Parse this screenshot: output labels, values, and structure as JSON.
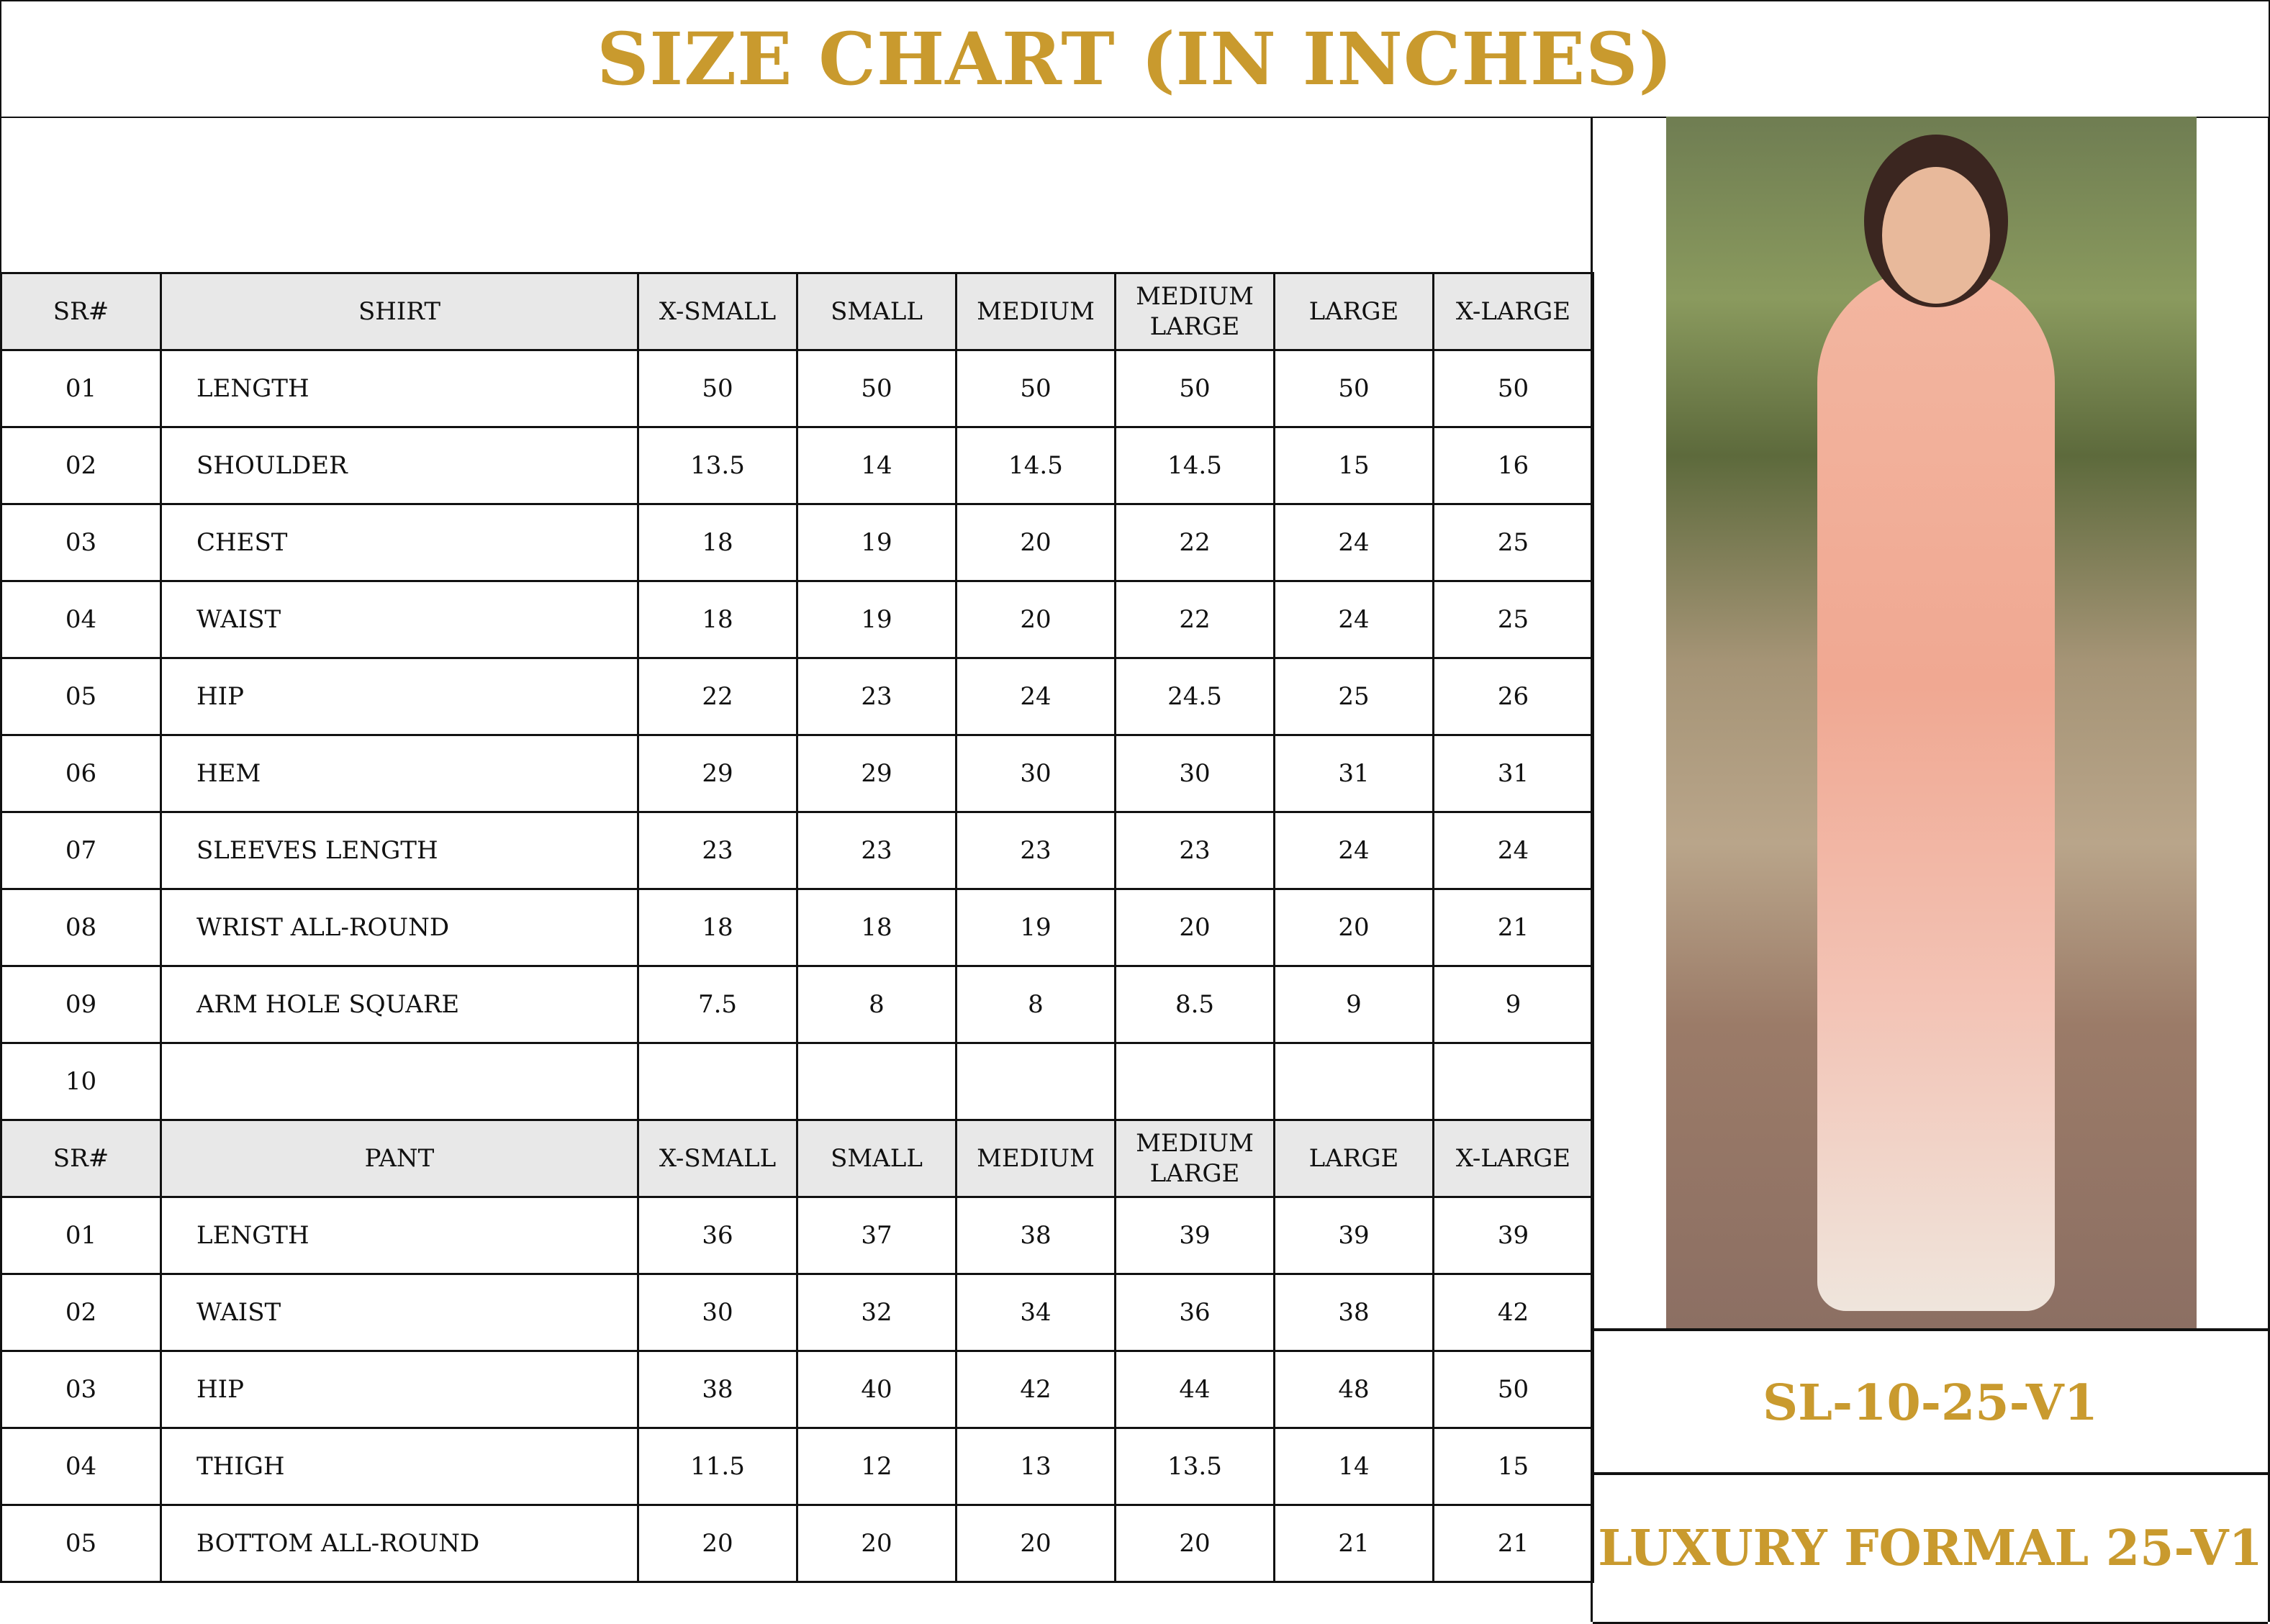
{
  "title": "SIZE CHART (IN INCHES)",
  "colors": {
    "gold": "#c99a2e",
    "header_bg": "#e8e8e8",
    "border": "#111111"
  },
  "shirt": {
    "headers": [
      "SR#",
      "SHIRT",
      "X-SMALL",
      "SMALL",
      "MEDIUM",
      "MEDIUM LARGE",
      "LARGE",
      "X-LARGE"
    ],
    "rows": [
      [
        "01",
        "LENGTH",
        "50",
        "50",
        "50",
        "50",
        "50",
        "50"
      ],
      [
        "02",
        "SHOULDER",
        "13.5",
        "14",
        "14.5",
        "14.5",
        "15",
        "16"
      ],
      [
        "03",
        "CHEST",
        "18",
        "19",
        "20",
        "22",
        "24",
        "25"
      ],
      [
        "04",
        "WAIST",
        "18",
        "19",
        "20",
        "22",
        "24",
        "25"
      ],
      [
        "05",
        "HIP",
        "22",
        "23",
        "24",
        "24.5",
        "25",
        "26"
      ],
      [
        "06",
        "HEM",
        "29",
        "29",
        "30",
        "30",
        "31",
        "31"
      ],
      [
        "07",
        "SLEEVES LENGTH",
        "23",
        "23",
        "23",
        "23",
        "24",
        "24"
      ],
      [
        "08",
        "WRIST ALL-ROUND",
        "18",
        "18",
        "19",
        "20",
        "20",
        "21"
      ],
      [
        "09",
        "ARM HOLE SQUARE",
        "7.5",
        "8",
        "8",
        "8.5",
        "9",
        "9"
      ],
      [
        "10",
        "",
        "",
        "",
        "",
        "",
        "",
        ""
      ]
    ]
  },
  "pant": {
    "headers": [
      "SR#",
      "PANT",
      "X-SMALL",
      "SMALL",
      "MEDIUM",
      "MEDIUM LARGE",
      "LARGE",
      "X-LARGE"
    ],
    "rows": [
      [
        "01",
        "LENGTH",
        "36",
        "37",
        "38",
        "39",
        "39",
        "39"
      ],
      [
        "02",
        "WAIST",
        "30",
        "32",
        "34",
        "36",
        "38",
        "42"
      ],
      [
        "03",
        "HIP",
        "38",
        "40",
        "42",
        "44",
        "48",
        "50"
      ],
      [
        "04",
        "THIGH",
        "11.5",
        "12",
        "13",
        "13.5",
        "14",
        "15"
      ],
      [
        "05",
        "BOTTOM ALL-ROUND",
        "20",
        "20",
        "20",
        "20",
        "21",
        "21"
      ]
    ]
  },
  "product": {
    "code": "SL-10-25-V1",
    "collection": "LUXURY FORMAL 25-V1",
    "photo": "model-photo"
  }
}
